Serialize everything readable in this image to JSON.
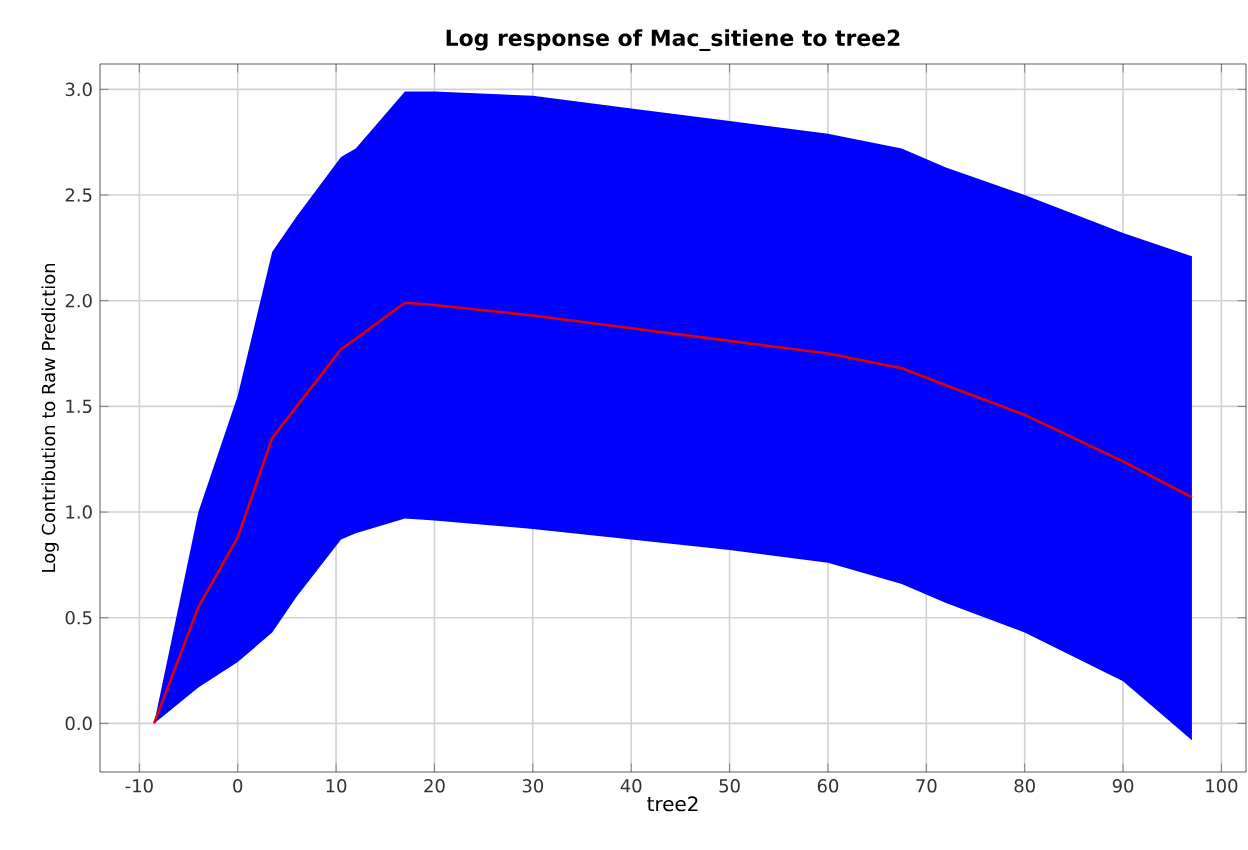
{
  "chart_data": {
    "type": "line",
    "title": "Log response of Mac_sitiene to tree2",
    "xlabel": "tree2",
    "ylabel": "Log Contribution to Raw Prediction",
    "x": [
      -8.5,
      -4,
      0,
      3.5,
      6,
      10.5,
      12,
      17,
      20,
      30,
      40,
      50,
      60,
      67.5,
      72,
      80,
      90,
      97
    ],
    "series": [
      {
        "color": "#e00000",
        "values": [
          0,
          0.55,
          0.88,
          1.35,
          1.5,
          1.77,
          1.82,
          1.99,
          1.98,
          1.93,
          1.87,
          1.81,
          1.75,
          1.68,
          1.6,
          1.46,
          1.24,
          1.07
        ],
        "lower": [
          0,
          0.17,
          0.29,
          0.43,
          0.6,
          0.87,
          0.9,
          0.97,
          0.96,
          0.92,
          0.87,
          0.82,
          0.76,
          0.66,
          0.57,
          0.43,
          0.2,
          -0.08
        ],
        "upper": [
          0,
          1.0,
          1.55,
          2.23,
          2.4,
          2.68,
          2.72,
          2.99,
          2.99,
          2.97,
          2.91,
          2.85,
          2.79,
          2.72,
          2.63,
          2.5,
          2.32,
          2.21
        ]
      }
    ],
    "xlim": [
      -14,
      102.5
    ],
    "ylim": [
      -0.23,
      3.12
    ],
    "xticks": [
      -10,
      0,
      10,
      20,
      30,
      40,
      50,
      60,
      70,
      80,
      90,
      100
    ],
    "yticks": [
      {
        "value": 0,
        "label": "0.0"
      },
      {
        "value": 0.5,
        "label": "0.5"
      },
      {
        "value": 1,
        "label": "1.0"
      },
      {
        "value": 1.5,
        "label": "1.5"
      },
      {
        "value": 2,
        "label": "2.0"
      },
      {
        "value": 2.5,
        "label": "2.5"
      },
      {
        "value": 3,
        "label": "3.0"
      }
    ],
    "grid": true,
    "marker": "none",
    "line_style": "solid"
  }
}
